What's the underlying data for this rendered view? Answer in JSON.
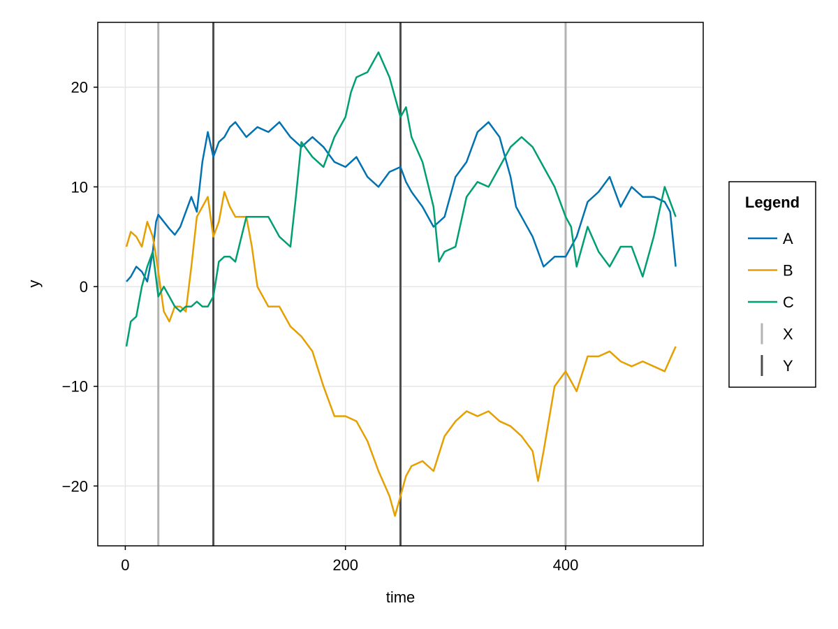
{
  "chart_data": {
    "type": "line",
    "xlabel": "time",
    "ylabel": "y",
    "xlim": [
      -25,
      525
    ],
    "ylim": [
      -26,
      26.5
    ],
    "x_ticks": [
      0,
      200,
      400
    ],
    "y_ticks": [
      -20,
      -10,
      0,
      10,
      20
    ],
    "x_tick_labels": [
      "0",
      "200",
      "400"
    ],
    "y_tick_labels": [
      "−20",
      "−10",
      "0",
      "10",
      "20"
    ],
    "grid": true,
    "legend": {
      "title": "Legend",
      "position": "right",
      "entries": [
        {
          "label": "A",
          "kind": "line",
          "color": "#0072b2"
        },
        {
          "label": "B",
          "kind": "line",
          "color": "#e69f00"
        },
        {
          "label": "C",
          "kind": "line",
          "color": "#009e73"
        },
        {
          "label": "X",
          "kind": "vline",
          "color": "#b3b3b3"
        },
        {
          "label": "Y",
          "kind": "vline",
          "color": "#4d4d4d"
        }
      ]
    },
    "vlines": [
      {
        "name": "X",
        "x": [
          30,
          400
        ],
        "color": "#b3b3b3"
      },
      {
        "name": "Y",
        "x": [
          80,
          250
        ],
        "color": "#4d4d4d"
      }
    ],
    "series": [
      {
        "name": "A",
        "color": "#0072b2",
        "x": [
          1,
          5,
          10,
          15,
          20,
          25,
          28,
          30,
          35,
          40,
          45,
          50,
          55,
          60,
          65,
          70,
          75,
          80,
          85,
          90,
          95,
          100,
          110,
          120,
          130,
          140,
          150,
          160,
          170,
          180,
          190,
          200,
          210,
          220,
          230,
          240,
          250,
          255,
          260,
          270,
          280,
          290,
          300,
          310,
          320,
          330,
          340,
          350,
          355,
          360,
          370,
          380,
          390,
          400,
          410,
          420,
          430,
          440,
          450,
          460,
          470,
          480,
          490,
          495,
          500
        ],
        "y": [
          0.5,
          1.0,
          2.0,
          1.5,
          0.5,
          3.5,
          6.5,
          7.2,
          6.5,
          5.8,
          5.2,
          6.0,
          7.5,
          9.0,
          7.5,
          12.5,
          15.5,
          13.0,
          14.5,
          15.0,
          16.0,
          16.5,
          15.0,
          16.0,
          15.5,
          16.5,
          15.0,
          14.0,
          15.0,
          14.0,
          12.5,
          12.0,
          13.0,
          11.0,
          10.0,
          11.5,
          12.0,
          10.5,
          9.5,
          8.0,
          6.0,
          7.0,
          11.0,
          12.5,
          15.5,
          16.5,
          15.0,
          11.0,
          8.0,
          7.0,
          5.0,
          2.0,
          3.0,
          3.0,
          5.0,
          8.5,
          9.5,
          11.0,
          8.0,
          10.0,
          9.0,
          9.0,
          8.5,
          7.5,
          2.0
        ]
      },
      {
        "name": "B",
        "color": "#e69f00",
        "x": [
          1,
          5,
          10,
          15,
          20,
          25,
          28,
          30,
          35,
          40,
          45,
          50,
          55,
          60,
          65,
          70,
          75,
          80,
          85,
          90,
          95,
          100,
          110,
          115,
          120,
          130,
          140,
          150,
          160,
          170,
          180,
          190,
          200,
          210,
          220,
          230,
          240,
          245,
          250,
          255,
          260,
          270,
          280,
          290,
          300,
          310,
          320,
          330,
          340,
          350,
          360,
          370,
          375,
          380,
          390,
          400,
          410,
          420,
          430,
          440,
          450,
          460,
          470,
          480,
          490,
          500
        ],
        "y": [
          4.0,
          5.5,
          5.0,
          4.0,
          6.5,
          5.0,
          3.0,
          1.5,
          -2.5,
          -3.5,
          -2.0,
          -2.0,
          -2.5,
          2.0,
          7.0,
          8.0,
          9.0,
          5.0,
          6.5,
          9.5,
          8.0,
          7.0,
          7.0,
          4.0,
          0.0,
          -2.0,
          -2.0,
          -4.0,
          -5.0,
          -6.5,
          -10.0,
          -13.0,
          -13.0,
          -13.5,
          -15.5,
          -18.5,
          -21.0,
          -23.0,
          -21.0,
          -19.0,
          -18.0,
          -17.5,
          -18.5,
          -15.0,
          -13.5,
          -12.5,
          -13.0,
          -12.5,
          -13.5,
          -14.0,
          -15.0,
          -16.5,
          -19.5,
          -16.5,
          -10.0,
          -8.5,
          -10.5,
          -7.0,
          -7.0,
          -6.5,
          -7.5,
          -8.0,
          -7.5,
          -8.0,
          -8.5,
          -6.0
        ]
      },
      {
        "name": "C",
        "color": "#009e73",
        "x": [
          1,
          5,
          10,
          15,
          20,
          25,
          30,
          35,
          40,
          45,
          50,
          55,
          60,
          65,
          70,
          75,
          80,
          85,
          90,
          95,
          100,
          110,
          120,
          130,
          140,
          150,
          155,
          160,
          170,
          180,
          190,
          200,
          205,
          210,
          220,
          230,
          240,
          250,
          255,
          260,
          270,
          280,
          285,
          290,
          300,
          310,
          320,
          330,
          340,
          350,
          360,
          370,
          380,
          390,
          400,
          405,
          410,
          420,
          430,
          440,
          450,
          460,
          470,
          480,
          490,
          500
        ],
        "y": [
          -6.0,
          -3.5,
          -3.0,
          0.0,
          2.0,
          3.5,
          -1.0,
          0.0,
          -1.0,
          -2.0,
          -2.5,
          -2.0,
          -2.0,
          -1.5,
          -2.0,
          -2.0,
          -1.0,
          2.5,
          3.0,
          3.0,
          2.5,
          7.0,
          7.0,
          7.0,
          5.0,
          4.0,
          9.0,
          14.5,
          13.0,
          12.0,
          15.0,
          17.0,
          19.5,
          21.0,
          21.5,
          23.5,
          21.0,
          17.0,
          18.0,
          15.0,
          12.5,
          8.0,
          2.5,
          3.5,
          4.0,
          9.0,
          10.5,
          10.0,
          12.0,
          14.0,
          15.0,
          14.0,
          12.0,
          10.0,
          7.0,
          6.0,
          2.0,
          6.0,
          3.5,
          2.0,
          4.0,
          4.0,
          1.0,
          5.0,
          10.0,
          7.0
        ]
      }
    ]
  }
}
